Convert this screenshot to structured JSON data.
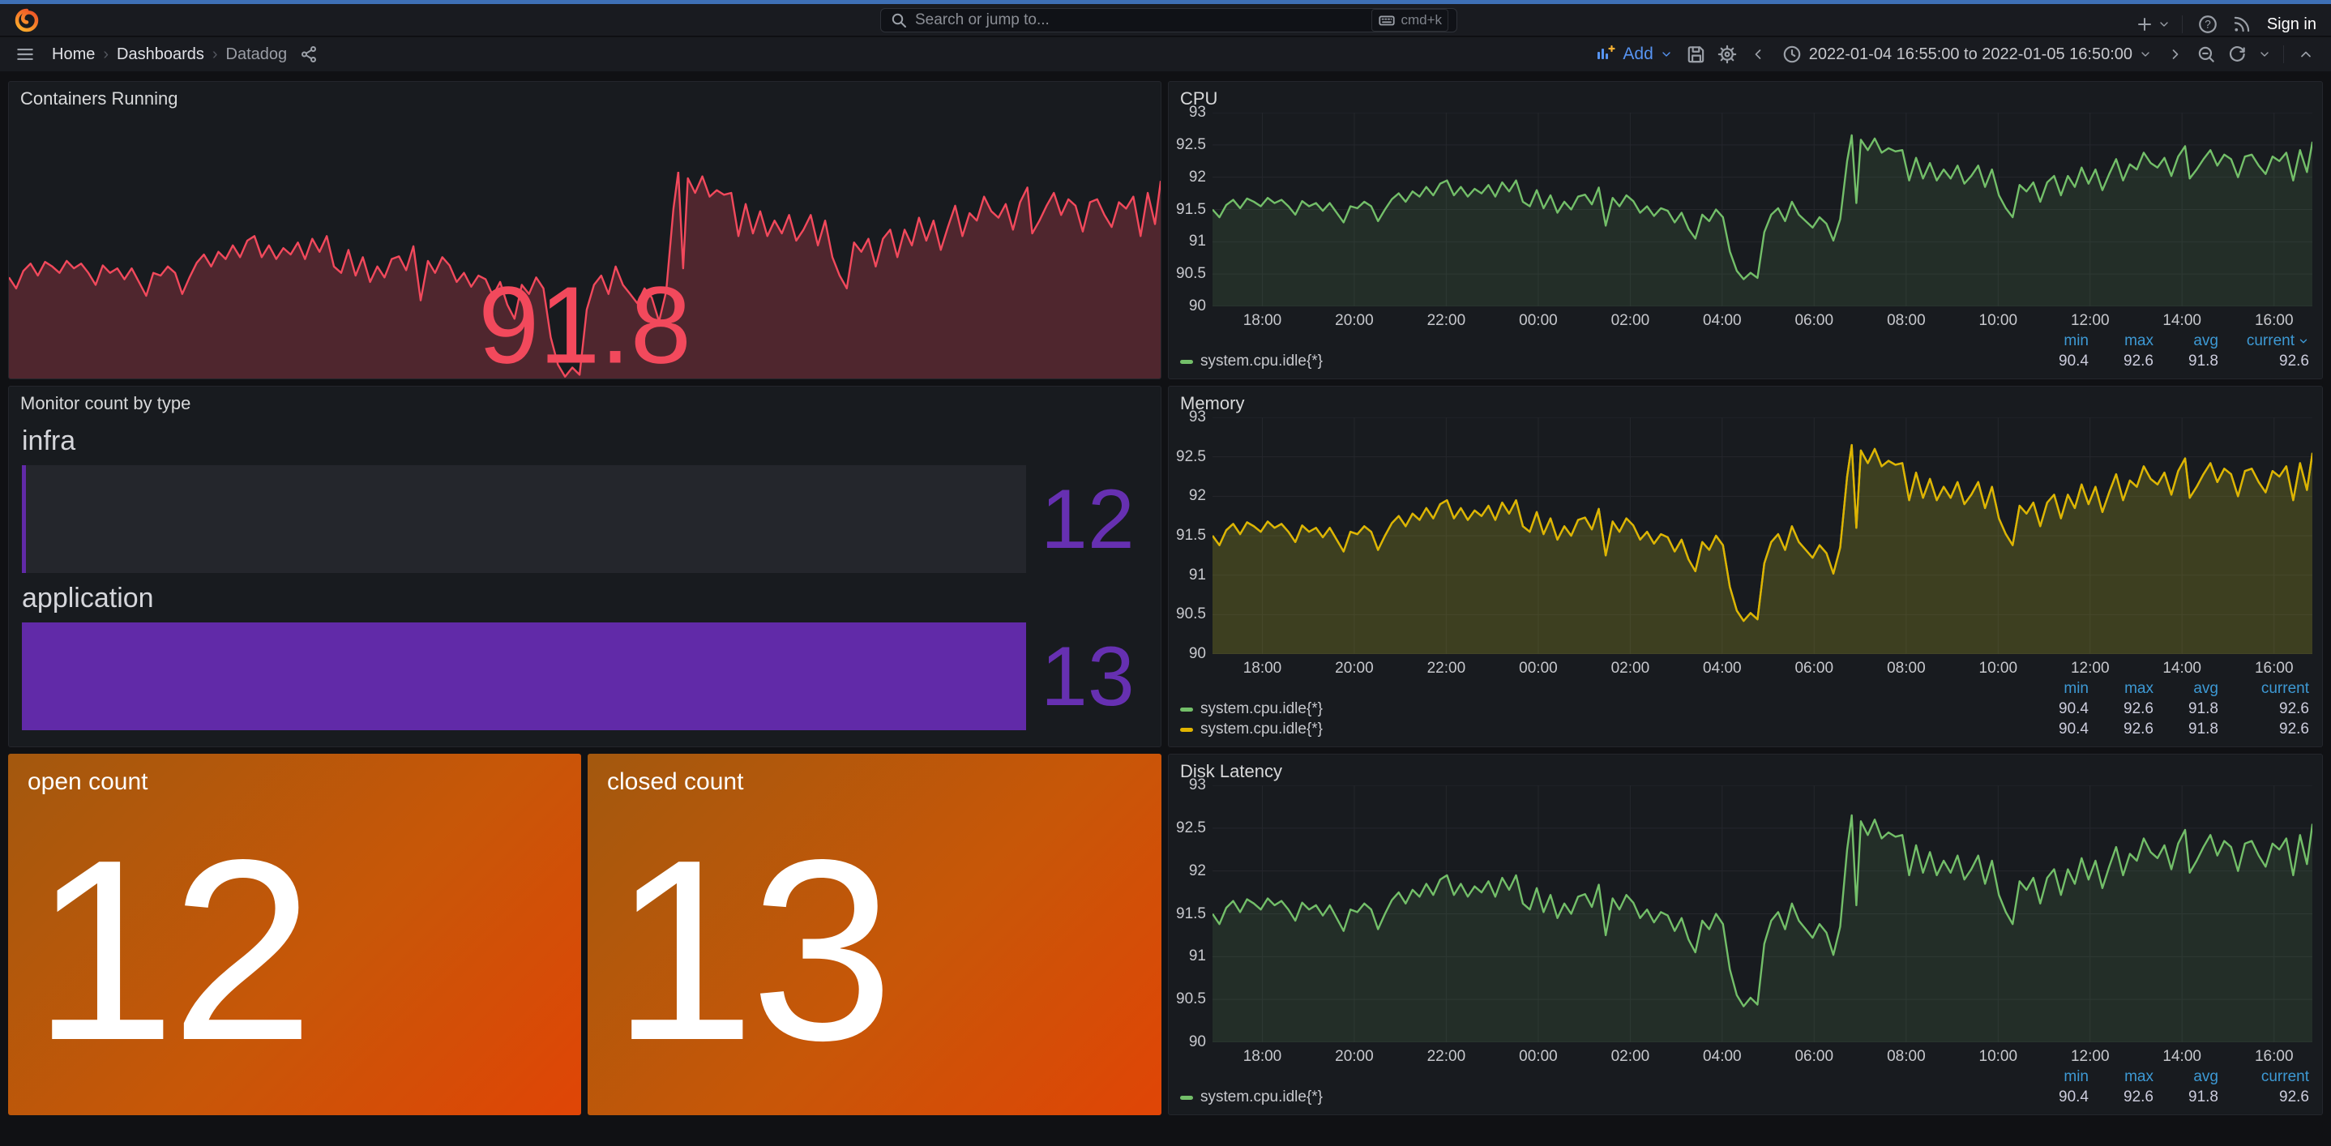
{
  "topnav": {
    "search_placeholder": "Search or jump to...",
    "shortcut": "cmd+k",
    "sign_in_label": "Sign in",
    "help_glyph": "?"
  },
  "breadcrumb": {
    "items": [
      "Home",
      "Dashboards",
      "Datadog"
    ],
    "separator": "›"
  },
  "toolbar": {
    "add_label": "Add",
    "time_range": "2022-01-04 16:55:00 to 2022-01-05 16:50:00"
  },
  "colors": {
    "accent_strip": "#3e70b6",
    "link_blue": "#3d99d4",
    "button_blue": "#5794F2",
    "red": "#F2495C",
    "green": "#73BF69",
    "yellow": "#E0B400",
    "purple_bar": "#612aa8",
    "purple_text": "#6630b1",
    "orange_gradient_start": "#a3580e",
    "orange_gradient_end": "#e04506"
  },
  "legend_columns": [
    "min",
    "max",
    "avg",
    "current"
  ],
  "panels": {
    "containers_running": {
      "title": "Containers Running",
      "value": "91.8"
    },
    "monitor_count": {
      "title": "Monitor count by type",
      "rows": [
        {
          "label": "infra",
          "value": "12",
          "fill_percent": 0
        },
        {
          "label": "application",
          "value": "13",
          "fill_percent": 100
        }
      ]
    },
    "open_count": {
      "title": "open count",
      "value": "12"
    },
    "closed_count": {
      "title": "closed count",
      "value": "13"
    },
    "cpu": {
      "title": "CPU",
      "sort_by_current": true,
      "legend": [
        {
          "name": "system.cpu.idle{*}",
          "color": "#73BF69",
          "min": "90.4",
          "max": "92.6",
          "avg": "91.8",
          "current": "92.6"
        }
      ]
    },
    "memory": {
      "title": "Memory",
      "sort_by_current": false,
      "legend": [
        {
          "name": "system.cpu.idle{*}",
          "color": "#73BF69",
          "min": "90.4",
          "max": "92.6",
          "avg": "91.8",
          "current": "92.6"
        },
        {
          "name": "system.cpu.idle{*}",
          "color": "#E0B400",
          "min": "90.4",
          "max": "92.6",
          "avg": "91.8",
          "current": "92.6"
        }
      ]
    },
    "disk": {
      "title": "Disk Latency",
      "sort_by_current": false,
      "legend": [
        {
          "name": "system.cpu.idle{*}",
          "color": "#73BF69",
          "min": "90.4",
          "max": "92.6",
          "avg": "91.8",
          "current": "92.6"
        }
      ]
    }
  },
  "chart_data": {
    "type": "line",
    "title": "system.cpu.idle{*}",
    "time_range": "2022-01-04 16:55:00 to 2022-01-05 16:50:00",
    "ylim": [
      90,
      93
    ],
    "y_ticks": [
      90,
      90.5,
      91,
      91.5,
      92,
      92.5,
      93
    ],
    "x_ticks": [
      {
        "label": "18:00",
        "t": 1.0833
      },
      {
        "label": "20:00",
        "t": 3.0833
      },
      {
        "label": "22:00",
        "t": 5.0833
      },
      {
        "label": "00:00",
        "t": 7.0833
      },
      {
        "label": "02:00",
        "t": 9.0833
      },
      {
        "label": "04:00",
        "t": 11.0833
      },
      {
        "label": "06:00",
        "t": 13.0833
      },
      {
        "label": "08:00",
        "t": 15.0833
      },
      {
        "label": "10:00",
        "t": 17.0833
      },
      {
        "label": "12:00",
        "t": 19.0833
      },
      {
        "label": "14:00",
        "t": 21.0833
      },
      {
        "label": "16:00",
        "t": 23.0833
      }
    ],
    "span_hours": 23.9167,
    "stats": {
      "min": 90.4,
      "max": 92.6,
      "avg": 91.8,
      "current": 92.6
    },
    "series_points": [
      [
        0,
        91.5
      ],
      [
        0.15,
        91.38
      ],
      [
        0.3,
        91.57
      ],
      [
        0.45,
        91.65
      ],
      [
        0.6,
        91.52
      ],
      [
        0.75,
        91.67
      ],
      [
        0.9,
        91.62
      ],
      [
        1.05,
        91.55
      ],
      [
        1.2,
        91.68
      ],
      [
        1.35,
        91.6
      ],
      [
        1.5,
        91.65
      ],
      [
        1.65,
        91.55
      ],
      [
        1.8,
        91.42
      ],
      [
        1.95,
        91.63
      ],
      [
        2.1,
        91.55
      ],
      [
        2.25,
        91.6
      ],
      [
        2.4,
        91.48
      ],
      [
        2.55,
        91.6
      ],
      [
        2.7,
        91.45
      ],
      [
        2.85,
        91.3
      ],
      [
        3,
        91.55
      ],
      [
        3.15,
        91.52
      ],
      [
        3.3,
        91.62
      ],
      [
        3.45,
        91.55
      ],
      [
        3.6,
        91.32
      ],
      [
        3.75,
        91.5
      ],
      [
        3.9,
        91.66
      ],
      [
        4.05,
        91.75
      ],
      [
        4.2,
        91.62
      ],
      [
        4.35,
        91.78
      ],
      [
        4.5,
        91.7
      ],
      [
        4.65,
        91.85
      ],
      [
        4.8,
        91.72
      ],
      [
        4.95,
        91.9
      ],
      [
        5.1,
        91.95
      ],
      [
        5.25,
        91.72
      ],
      [
        5.4,
        91.85
      ],
      [
        5.55,
        91.7
      ],
      [
        5.7,
        91.82
      ],
      [
        5.85,
        91.75
      ],
      [
        6,
        91.88
      ],
      [
        6.15,
        91.7
      ],
      [
        6.3,
        91.92
      ],
      [
        6.45,
        91.78
      ],
      [
        6.6,
        91.95
      ],
      [
        6.75,
        91.62
      ],
      [
        6.9,
        91.55
      ],
      [
        7.05,
        91.8
      ],
      [
        7.2,
        91.52
      ],
      [
        7.35,
        91.72
      ],
      [
        7.5,
        91.45
      ],
      [
        7.65,
        91.62
      ],
      [
        7.8,
        91.5
      ],
      [
        7.95,
        91.7
      ],
      [
        8.1,
        91.73
      ],
      [
        8.25,
        91.58
      ],
      [
        8.4,
        91.84
      ],
      [
        8.55,
        91.25
      ],
      [
        8.7,
        91.68
      ],
      [
        8.85,
        91.55
      ],
      [
        9,
        91.72
      ],
      [
        9.15,
        91.63
      ],
      [
        9.3,
        91.45
      ],
      [
        9.45,
        91.55
      ],
      [
        9.6,
        91.4
      ],
      [
        9.75,
        91.52
      ],
      [
        9.9,
        91.48
      ],
      [
        10.05,
        91.3
      ],
      [
        10.2,
        91.45
      ],
      [
        10.35,
        91.2
      ],
      [
        10.5,
        91.05
      ],
      [
        10.65,
        91.42
      ],
      [
        10.8,
        91.32
      ],
      [
        10.95,
        91.5
      ],
      [
        11.1,
        91.38
      ],
      [
        11.25,
        90.85
      ],
      [
        11.4,
        90.55
      ],
      [
        11.55,
        90.42
      ],
      [
        11.7,
        90.52
      ],
      [
        11.85,
        90.44
      ],
      [
        12,
        91.15
      ],
      [
        12.15,
        91.42
      ],
      [
        12.3,
        91.52
      ],
      [
        12.45,
        91.32
      ],
      [
        12.6,
        91.62
      ],
      [
        12.75,
        91.42
      ],
      [
        12.9,
        91.32
      ],
      [
        13.05,
        91.22
      ],
      [
        13.2,
        91.38
      ],
      [
        13.35,
        91.28
      ],
      [
        13.5,
        91.02
      ],
      [
        13.65,
        91.35
      ],
      [
        13.8,
        92.25
      ],
      [
        13.9,
        92.65
      ],
      [
        14,
        91.6
      ],
      [
        14.1,
        92.58
      ],
      [
        14.25,
        92.42
      ],
      [
        14.4,
        92.6
      ],
      [
        14.55,
        92.38
      ],
      [
        14.7,
        92.45
      ],
      [
        14.85,
        92.4
      ],
      [
        15,
        92.42
      ],
      [
        15.15,
        91.95
      ],
      [
        15.3,
        92.3
      ],
      [
        15.45,
        91.98
      ],
      [
        15.6,
        92.22
      ],
      [
        15.75,
        91.95
      ],
      [
        15.9,
        92.12
      ],
      [
        16.05,
        91.98
      ],
      [
        16.2,
        92.18
      ],
      [
        16.35,
        91.9
      ],
      [
        16.5,
        92.02
      ],
      [
        16.65,
        92.18
      ],
      [
        16.8,
        91.85
      ],
      [
        16.95,
        92.12
      ],
      [
        17.1,
        91.72
      ],
      [
        17.25,
        91.52
      ],
      [
        17.4,
        91.38
      ],
      [
        17.55,
        91.88
      ],
      [
        17.7,
        91.78
      ],
      [
        17.85,
        91.92
      ],
      [
        18,
        91.62
      ],
      [
        18.15,
        91.92
      ],
      [
        18.3,
        92.02
      ],
      [
        18.45,
        91.72
      ],
      [
        18.6,
        92.02
      ],
      [
        18.75,
        91.85
      ],
      [
        18.9,
        92.15
      ],
      [
        19.05,
        91.9
      ],
      [
        19.2,
        92.12
      ],
      [
        19.35,
        91.8
      ],
      [
        19.5,
        92.05
      ],
      [
        19.65,
        92.28
      ],
      [
        19.8,
        91.95
      ],
      [
        19.95,
        92.2
      ],
      [
        20.1,
        92.12
      ],
      [
        20.25,
        92.38
      ],
      [
        20.4,
        92.22
      ],
      [
        20.55,
        92.15
      ],
      [
        20.7,
        92.3
      ],
      [
        20.85,
        92.02
      ],
      [
        21,
        92.32
      ],
      [
        21.15,
        92.48
      ],
      [
        21.25,
        91.98
      ],
      [
        21.4,
        92.12
      ],
      [
        21.55,
        92.28
      ],
      [
        21.7,
        92.42
      ],
      [
        21.85,
        92.18
      ],
      [
        22,
        92.35
      ],
      [
        22.15,
        92.28
      ],
      [
        22.3,
        92
      ],
      [
        22.45,
        92.32
      ],
      [
        22.6,
        92.35
      ],
      [
        22.75,
        92.18
      ],
      [
        22.9,
        92.05
      ],
      [
        23.05,
        92.32
      ],
      [
        23.2,
        92.25
      ],
      [
        23.35,
        92.38
      ],
      [
        23.5,
        91.95
      ],
      [
        23.65,
        92.42
      ],
      [
        23.8,
        92.08
      ],
      [
        23.92,
        92.55
      ]
    ],
    "charts": [
      {
        "target": "containers",
        "style": "sparkline",
        "color": "#F2495C",
        "fill_opacity": 0.25,
        "ylim": [
          90.4,
          92.65
        ]
      },
      {
        "target": "cpu",
        "series": [
          {
            "color": "#73BF69",
            "fill_opacity": 0.12
          }
        ]
      },
      {
        "target": "memory",
        "series": [
          {
            "color": "#73BF69",
            "fill_opacity": 0.1
          },
          {
            "color": "#E0B400",
            "fill_opacity": 0.15
          }
        ]
      },
      {
        "target": "disk",
        "series": [
          {
            "color": "#73BF69",
            "fill_opacity": 0.12
          }
        ]
      }
    ]
  }
}
